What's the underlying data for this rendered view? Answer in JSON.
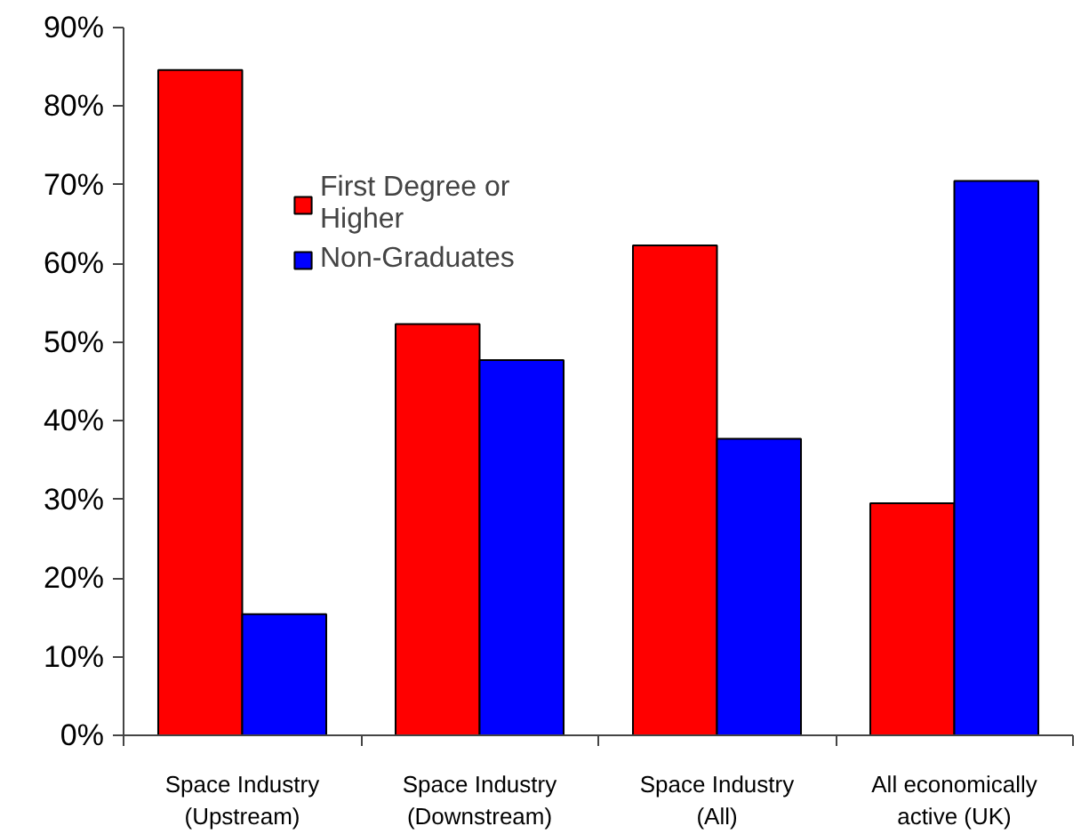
{
  "chart_data": {
    "type": "bar",
    "categories": [
      "Space Industry\n(Upstream)",
      "Space Industry\n(Downstream)",
      "Space Industry\n(All)",
      "All economically\nactive (UK)"
    ],
    "series": [
      {
        "name": "First Degree or\nHigher",
        "color": "#ff0000",
        "values": [
          84.6,
          52.3,
          62.3,
          29.5
        ]
      },
      {
        "name": "Non-Graduates",
        "color": "#0000ff",
        "values": [
          15.4,
          47.7,
          37.7,
          70.5
        ]
      }
    ],
    "ylim": [
      0,
      90
    ],
    "yticks": [
      {
        "value": 0,
        "label": "0%"
      },
      {
        "value": 10,
        "label": "10%"
      },
      {
        "value": 20,
        "label": "20%"
      },
      {
        "value": 30,
        "label": "30%"
      },
      {
        "value": 40,
        "label": "40%"
      },
      {
        "value": 50,
        "label": "50%"
      },
      {
        "value": 60,
        "label": "60%"
      },
      {
        "value": 70,
        "label": "70%"
      },
      {
        "value": 80,
        "label": "80%"
      },
      {
        "value": 90,
        "label": "90%"
      }
    ],
    "grid": false,
    "legend": "top left"
  }
}
